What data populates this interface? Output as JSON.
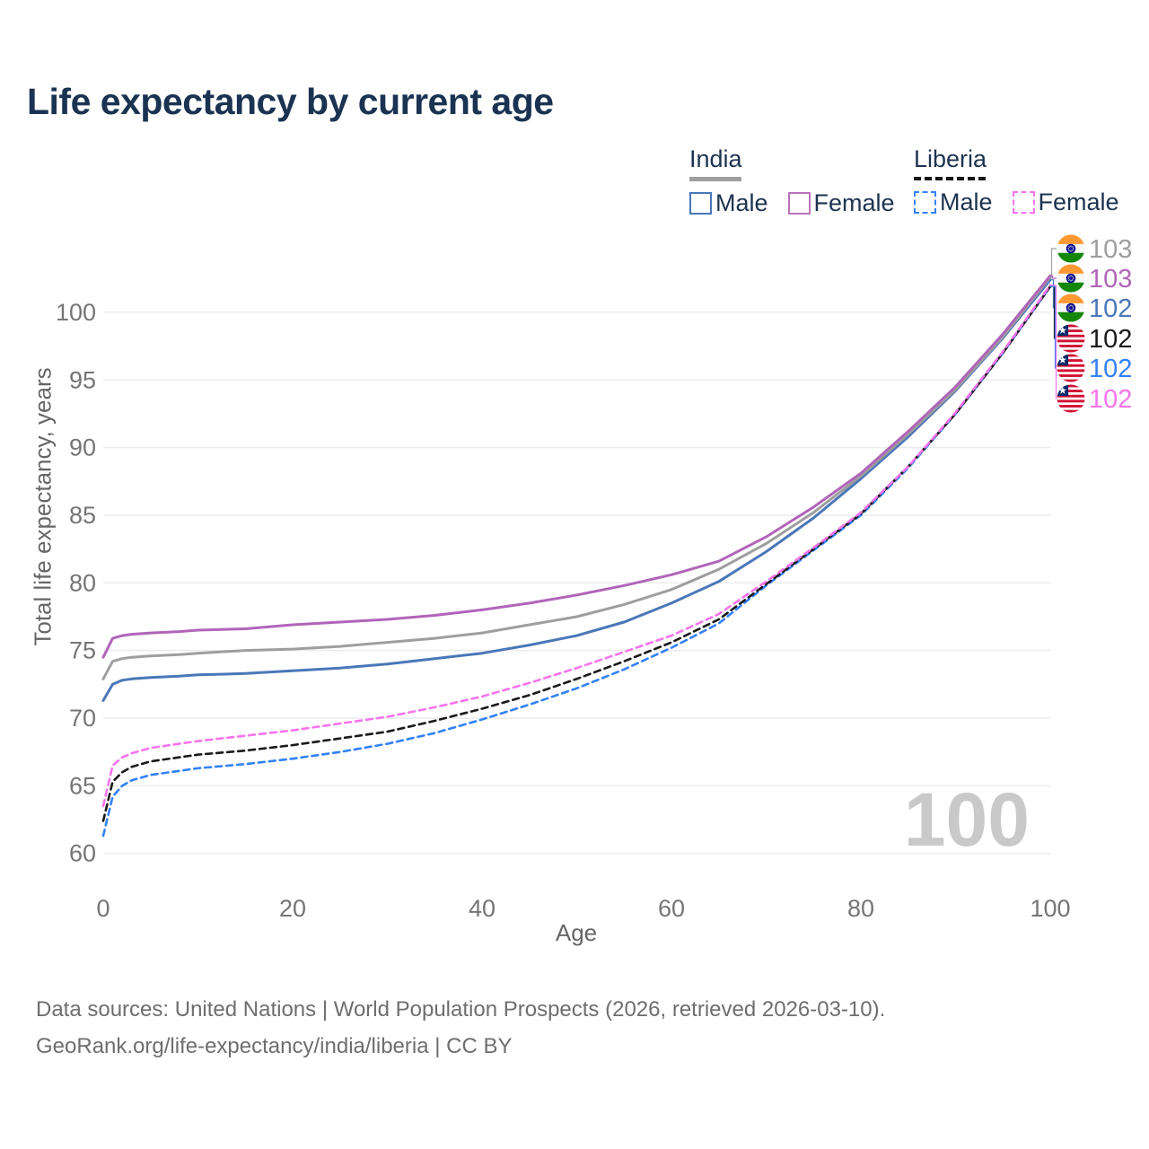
{
  "page": {
    "title": "Life expectancy by current age",
    "watermark_age": "100"
  },
  "legend": {
    "position": "top-right",
    "groups": [
      {
        "name": "India",
        "line_style": "solid",
        "underline_color": "#9e9e9e",
        "items": [
          {
            "label": "Male",
            "color": "#4a77b8",
            "dashed": false
          },
          {
            "label": "Female",
            "color": "#b973b9",
            "dashed": false
          }
        ]
      },
      {
        "name": "Liberia",
        "line_style": "dashed",
        "underline_color": "#151515",
        "items": [
          {
            "label": "Male",
            "color": "#3381f7",
            "dashed": true
          },
          {
            "label": "Female",
            "color": "#f674ec",
            "dashed": true
          }
        ]
      }
    ]
  },
  "chart_data": {
    "type": "line",
    "title": "Life expectancy by current age",
    "xlabel": "Age",
    "ylabel": "Total life expectancy, years",
    "xlim": [
      0,
      100
    ],
    "ylim": [
      60,
      103
    ],
    "x_ticks": [
      0,
      20,
      40,
      60,
      80,
      100
    ],
    "y_ticks": [
      60,
      65,
      70,
      75,
      80,
      85,
      90,
      95,
      100
    ],
    "grid": "horizontal",
    "legend_position": "top-right",
    "ages": [
      0,
      1,
      2,
      3,
      5,
      8,
      10,
      15,
      20,
      25,
      30,
      35,
      40,
      45,
      50,
      55,
      60,
      65,
      70,
      75,
      80,
      85,
      90,
      95,
      100
    ],
    "series": [
      {
        "id": "india_both",
        "name": "India (both sexes)",
        "country": "India",
        "flag": "india",
        "color": "#9e9e9e",
        "dashed": false,
        "end_label": "103",
        "values": [
          72.9,
          74.2,
          74.4,
          74.5,
          74.6,
          74.7,
          74.8,
          75.0,
          75.1,
          75.3,
          75.6,
          75.9,
          76.3,
          76.9,
          77.5,
          78.4,
          79.5,
          81.0,
          82.9,
          85.2,
          87.9,
          91.0,
          94.3,
          98.2,
          102.6
        ]
      },
      {
        "id": "india_female",
        "name": "India Female",
        "country": "India",
        "flag": "india",
        "color": "#b065b8",
        "dashed": false,
        "end_label": "103",
        "values": [
          74.5,
          75.9,
          76.1,
          76.2,
          76.3,
          76.4,
          76.5,
          76.6,
          76.9,
          77.1,
          77.3,
          77.6,
          78.0,
          78.5,
          79.1,
          79.8,
          80.6,
          81.6,
          83.4,
          85.6,
          88.1,
          91.2,
          94.5,
          98.4,
          102.7
        ]
      },
      {
        "id": "india_male",
        "name": "India Male",
        "country": "India",
        "flag": "india",
        "color": "#4a77b8",
        "dashed": false,
        "end_label": "102",
        "values": [
          71.3,
          72.5,
          72.8,
          72.9,
          73.0,
          73.1,
          73.2,
          73.3,
          73.5,
          73.7,
          74.0,
          74.4,
          74.8,
          75.4,
          76.1,
          77.1,
          78.5,
          80.1,
          82.3,
          84.8,
          87.7,
          90.8,
          94.2,
          98.1,
          102.4
        ]
      },
      {
        "id": "liberia_both",
        "name": "Liberia (both sexes)",
        "country": "Liberia",
        "flag": "liberia",
        "color": "#1a1a1a",
        "dashed": true,
        "end_label": "102",
        "values": [
          62.4,
          65.3,
          66.0,
          66.4,
          66.8,
          67.1,
          67.3,
          67.6,
          68.0,
          68.5,
          69.0,
          69.8,
          70.7,
          71.7,
          72.9,
          74.2,
          75.6,
          77.3,
          79.9,
          82.5,
          85.1,
          88.6,
          92.5,
          97.0,
          101.9
        ]
      },
      {
        "id": "liberia_male",
        "name": "Liberia Male",
        "country": "Liberia",
        "flag": "liberia",
        "color": "#3381f7",
        "dashed": true,
        "end_label": "102",
        "values": [
          61.3,
          64.2,
          65.0,
          65.4,
          65.8,
          66.1,
          66.3,
          66.6,
          67.0,
          67.5,
          68.1,
          68.9,
          69.9,
          71.0,
          72.2,
          73.6,
          75.2,
          77.0,
          79.8,
          82.4,
          85.0,
          88.5,
          92.5,
          97.0,
          101.9
        ]
      },
      {
        "id": "liberia_female",
        "name": "Liberia Female",
        "country": "Liberia",
        "flag": "liberia",
        "color": "#f674ec",
        "dashed": true,
        "end_label": "102",
        "values": [
          63.5,
          66.5,
          67.1,
          67.4,
          67.8,
          68.1,
          68.3,
          68.7,
          69.1,
          69.6,
          70.1,
          70.8,
          71.6,
          72.6,
          73.7,
          74.9,
          76.1,
          77.7,
          80.1,
          82.6,
          85.2,
          88.6,
          92.6,
          97.1,
          102.0
        ]
      }
    ],
    "draw_order": [
      "liberia_male",
      "liberia_both",
      "liberia_female",
      "india_male",
      "india_both",
      "india_female"
    ],
    "right_label_order": [
      "india_both",
      "india_female",
      "india_male",
      "liberia_both",
      "liberia_male",
      "liberia_female"
    ]
  },
  "footer": {
    "line1": "Data sources: United Nations | World Population Prospects (2026, retrieved 2026-03-10).",
    "line2": "GeoRank.org/life-expectancy/india/liberia | CC BY"
  }
}
